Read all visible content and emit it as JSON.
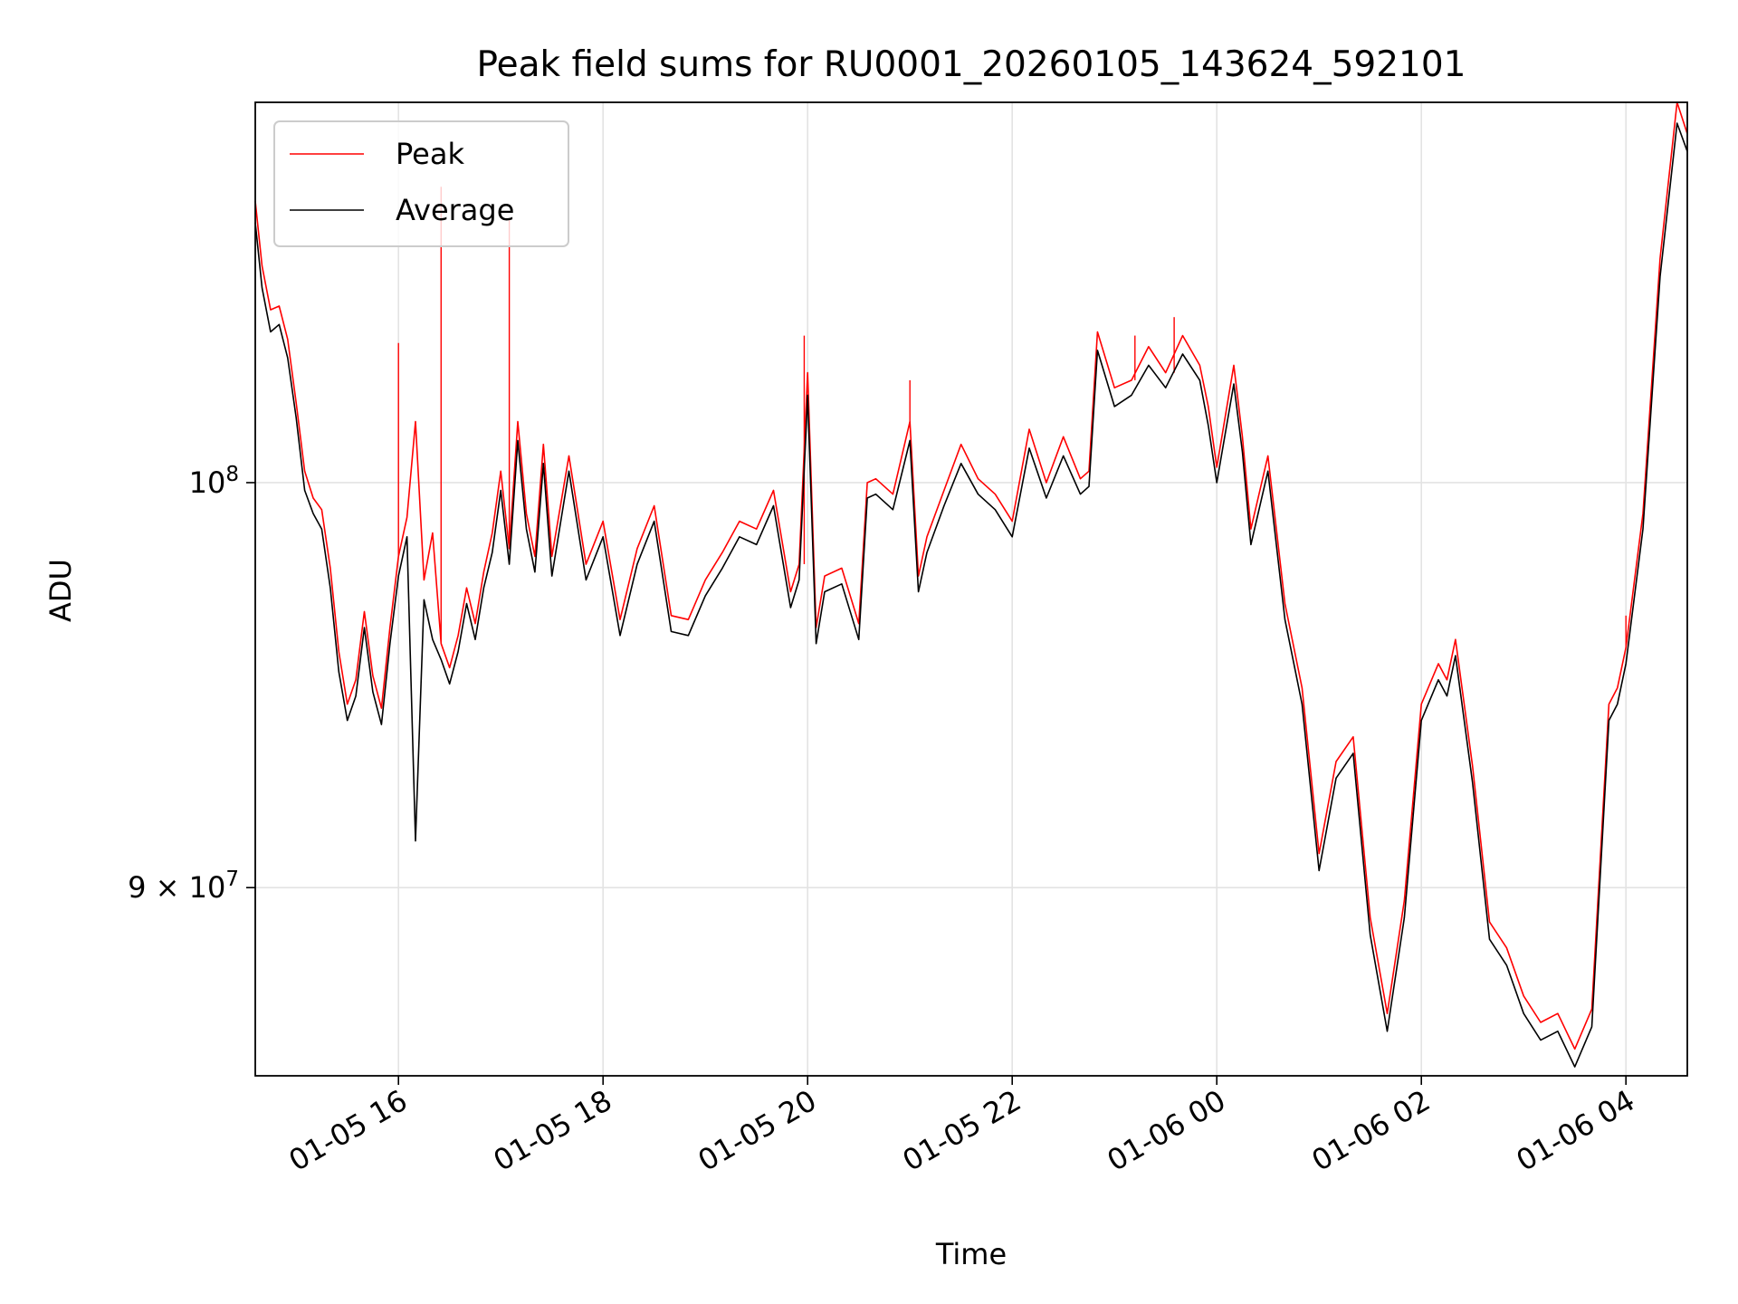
{
  "chart_data": {
    "type": "line",
    "title": "Peak field sums for RU0001_20260105_143624_592101",
    "xlabel": "Time",
    "ylabel": "ADU",
    "yscale": "log",
    "grid": true,
    "legend_position": "top-left",
    "xlim": [
      "2026-01-05 14:36",
      "2026-01-06 04:36"
    ],
    "ylim": [
      85700000,
      110400000
    ],
    "x_ticks": [
      {
        "value": "2026-01-05 16:00",
        "label": "01-05 16"
      },
      {
        "value": "2026-01-05 18:00",
        "label": "01-05 18"
      },
      {
        "value": "2026-01-05 20:00",
        "label": "01-05 20"
      },
      {
        "value": "2026-01-05 22:00",
        "label": "01-05 22"
      },
      {
        "value": "2026-01-06 00:00",
        "label": "01-06 00"
      },
      {
        "value": "2026-01-06 02:00",
        "label": "01-06 02"
      },
      {
        "value": "2026-01-06 04:00",
        "label": "01-06 04"
      }
    ],
    "y_ticks": [
      {
        "value": 90000000,
        "base": "9 × 10",
        "exp": "7"
      },
      {
        "value": 100000000,
        "base": "10",
        "exp": "8"
      }
    ],
    "series": [
      {
        "name": "Peak",
        "color": "#ff0000",
        "x": [
          "2026-01-05 14:36",
          "2026-01-05 14:40",
          "2026-01-05 14:45",
          "2026-01-05 14:50",
          "2026-01-05 14:55",
          "2026-01-05 15:00",
          "2026-01-05 15:05",
          "2026-01-05 15:10",
          "2026-01-05 15:15",
          "2026-01-05 15:20",
          "2026-01-05 15:25",
          "2026-01-05 15:30",
          "2026-01-05 15:35",
          "2026-01-05 15:40",
          "2026-01-05 15:45",
          "2026-01-05 15:50",
          "2026-01-05 15:55",
          "2026-01-05 16:00",
          "2026-01-05 16:05",
          "2026-01-05 16:10",
          "2026-01-05 16:15",
          "2026-01-05 16:20",
          "2026-01-05 16:25",
          "2026-01-05 16:30",
          "2026-01-05 16:35",
          "2026-01-05 16:40",
          "2026-01-05 16:45",
          "2026-01-05 16:50",
          "2026-01-05 16:55",
          "2026-01-05 17:00",
          "2026-01-05 17:05",
          "2026-01-05 17:10",
          "2026-01-05 17:15",
          "2026-01-05 17:20",
          "2026-01-05 17:25",
          "2026-01-05 17:30",
          "2026-01-05 17:40",
          "2026-01-05 17:50",
          "2026-01-05 18:00",
          "2026-01-05 18:10",
          "2026-01-05 18:20",
          "2026-01-05 18:30",
          "2026-01-05 18:40",
          "2026-01-05 18:50",
          "2026-01-05 19:00",
          "2026-01-05 19:10",
          "2026-01-05 19:20",
          "2026-01-05 19:30",
          "2026-01-05 19:40",
          "2026-01-05 19:50",
          "2026-01-05 19:55",
          "2026-01-05 20:00",
          "2026-01-05 20:05",
          "2026-01-05 20:10",
          "2026-01-05 20:20",
          "2026-01-05 20:30",
          "2026-01-05 20:35",
          "2026-01-05 20:40",
          "2026-01-05 20:50",
          "2026-01-05 21:00",
          "2026-01-05 21:05",
          "2026-01-05 21:10",
          "2026-01-05 21:20",
          "2026-01-05 21:30",
          "2026-01-05 21:40",
          "2026-01-05 21:50",
          "2026-01-05 22:00",
          "2026-01-05 22:10",
          "2026-01-05 22:20",
          "2026-01-05 22:30",
          "2026-01-05 22:40",
          "2026-01-05 22:45",
          "2026-01-05 22:50",
          "2026-01-05 23:00",
          "2026-01-05 23:10",
          "2026-01-05 23:20",
          "2026-01-05 23:30",
          "2026-01-05 23:40",
          "2026-01-05 23:50",
          "2026-01-05 23:55",
          "2026-01-06 00:00",
          "2026-01-06 00:10",
          "2026-01-06 00:15",
          "2026-01-06 00:20",
          "2026-01-06 00:30",
          "2026-01-06 00:40",
          "2026-01-06 00:50",
          "2026-01-06 01:00",
          "2026-01-06 01:10",
          "2026-01-06 01:20",
          "2026-01-06 01:30",
          "2026-01-06 01:40",
          "2026-01-06 01:50",
          "2026-01-06 02:00",
          "2026-01-06 02:10",
          "2026-01-06 02:15",
          "2026-01-06 02:20",
          "2026-01-06 02:30",
          "2026-01-06 02:40",
          "2026-01-06 02:50",
          "2026-01-06 03:00",
          "2026-01-06 03:10",
          "2026-01-06 03:20",
          "2026-01-06 03:30",
          "2026-01-06 03:40",
          "2026-01-06 03:50",
          "2026-01-06 03:55",
          "2026-01-06 04:00",
          "2026-01-06 04:10",
          "2026-01-06 04:20",
          "2026-01-06 04:30",
          "2026-01-06 04:36"
        ],
        "y": [
          107600000,
          105800000,
          104600000,
          104700000,
          103800000,
          102100000,
          100300000,
          99600000,
          99300000,
          97800000,
          95700000,
          94400000,
          95000000,
          96700000,
          95100000,
          94300000,
          96300000,
          98100000,
          99100000,
          101600000,
          97500000,
          98700000,
          95900000,
          95300000,
          96100000,
          97300000,
          96400000,
          97700000,
          98700000,
          100300000,
          98300000,
          101600000,
          99200000,
          98100000,
          101000000,
          98100000,
          100700000,
          97900000,
          99000000,
          96500000,
          98300000,
          99400000,
          96600000,
          96500000,
          97500000,
          98200000,
          99000000,
          98800000,
          99800000,
          97200000,
          97900000,
          102900000,
          96300000,
          97600000,
          97800000,
          96400000,
          100000000,
          100100000,
          99700000,
          101600000,
          97600000,
          98600000,
          99800000,
          101000000,
          100100000,
          99700000,
          99000000,
          101400000,
          100000000,
          101200000,
          100100000,
          100300000,
          104000000,
          102500000,
          102700000,
          103600000,
          102900000,
          103900000,
          103100000,
          102000000,
          100400000,
          103100000,
          101200000,
          98800000,
          100700000,
          96900000,
          94800000,
          90800000,
          93000000,
          93600000,
          89300000,
          87100000,
          89700000,
          94400000,
          95400000,
          95000000,
          96000000,
          92900000,
          89200000,
          88600000,
          87500000,
          86900000,
          87100000,
          86300000,
          87200000,
          94400000,
          94800000,
          95800000,
          99200000,
          106000000,
          110400000,
          109500000
        ],
        "spikes": [
          {
            "x": "2026-01-05 16:00",
            "y": 103700000
          },
          {
            "x": "2026-01-05 16:25",
            "y": 108000000
          },
          {
            "x": "2026-01-05 17:05",
            "y": 107100000
          },
          {
            "x": "2026-01-05 19:58",
            "y": 103900000
          },
          {
            "x": "2026-01-05 21:00",
            "y": 102700000
          },
          {
            "x": "2026-01-05 23:12",
            "y": 103900000
          },
          {
            "x": "2026-01-05 23:35",
            "y": 104400000
          },
          {
            "x": "2026-01-06 04:00",
            "y": 96600000
          }
        ]
      },
      {
        "name": "Average",
        "color": "#000000",
        "x": [
          "2026-01-05 14:36",
          "2026-01-05 14:40",
          "2026-01-05 14:45",
          "2026-01-05 14:50",
          "2026-01-05 14:55",
          "2026-01-05 15:00",
          "2026-01-05 15:05",
          "2026-01-05 15:10",
          "2026-01-05 15:15",
          "2026-01-05 15:20",
          "2026-01-05 15:25",
          "2026-01-05 15:30",
          "2026-01-05 15:35",
          "2026-01-05 15:40",
          "2026-01-05 15:45",
          "2026-01-05 15:50",
          "2026-01-05 15:55",
          "2026-01-05 16:00",
          "2026-01-05 16:05",
          "2026-01-05 16:10",
          "2026-01-05 16:15",
          "2026-01-05 16:20",
          "2026-01-05 16:25",
          "2026-01-05 16:30",
          "2026-01-05 16:35",
          "2026-01-05 16:40",
          "2026-01-05 16:45",
          "2026-01-05 16:50",
          "2026-01-05 16:55",
          "2026-01-05 17:00",
          "2026-01-05 17:05",
          "2026-01-05 17:10",
          "2026-01-05 17:15",
          "2026-01-05 17:20",
          "2026-01-05 17:25",
          "2026-01-05 17:30",
          "2026-01-05 17:40",
          "2026-01-05 17:50",
          "2026-01-05 18:00",
          "2026-01-05 18:10",
          "2026-01-05 18:20",
          "2026-01-05 18:30",
          "2026-01-05 18:40",
          "2026-01-05 18:50",
          "2026-01-05 19:00",
          "2026-01-05 19:10",
          "2026-01-05 19:20",
          "2026-01-05 19:30",
          "2026-01-05 19:40",
          "2026-01-05 19:50",
          "2026-01-05 19:55",
          "2026-01-05 20:00",
          "2026-01-05 20:05",
          "2026-01-05 20:10",
          "2026-01-05 20:20",
          "2026-01-05 20:30",
          "2026-01-05 20:35",
          "2026-01-05 20:40",
          "2026-01-05 20:50",
          "2026-01-05 21:00",
          "2026-01-05 21:05",
          "2026-01-05 21:10",
          "2026-01-05 21:20",
          "2026-01-05 21:30",
          "2026-01-05 21:40",
          "2026-01-05 21:50",
          "2026-01-05 22:00",
          "2026-01-05 22:10",
          "2026-01-05 22:20",
          "2026-01-05 22:30",
          "2026-01-05 22:40",
          "2026-01-05 22:45",
          "2026-01-05 22:50",
          "2026-01-05 23:00",
          "2026-01-05 23:10",
          "2026-01-05 23:20",
          "2026-01-05 23:30",
          "2026-01-05 23:40",
          "2026-01-05 23:50",
          "2026-01-05 23:55",
          "2026-01-06 00:00",
          "2026-01-06 00:10",
          "2026-01-06 00:15",
          "2026-01-06 00:20",
          "2026-01-06 00:30",
          "2026-01-06 00:40",
          "2026-01-06 00:50",
          "2026-01-06 01:00",
          "2026-01-06 01:10",
          "2026-01-06 01:20",
          "2026-01-06 01:30",
          "2026-01-06 01:40",
          "2026-01-06 01:50",
          "2026-01-06 02:00",
          "2026-01-06 02:10",
          "2026-01-06 02:15",
          "2026-01-06 02:20",
          "2026-01-06 02:30",
          "2026-01-06 02:40",
          "2026-01-06 02:50",
          "2026-01-06 03:00",
          "2026-01-06 03:10",
          "2026-01-06 03:20",
          "2026-01-06 03:30",
          "2026-01-06 03:40",
          "2026-01-06 03:50",
          "2026-01-06 03:55",
          "2026-01-06 04:00",
          "2026-01-06 04:10",
          "2026-01-06 04:20",
          "2026-01-06 04:30",
          "2026-01-06 04:36"
        ],
        "y": [
          107000000,
          105200000,
          104000000,
          104200000,
          103300000,
          101700000,
          99800000,
          99200000,
          98800000,
          97300000,
          95200000,
          94000000,
          94600000,
          96300000,
          94700000,
          93900000,
          95900000,
          97600000,
          98600000,
          91100000,
          97000000,
          96000000,
          95500000,
          94900000,
          95700000,
          96900000,
          96000000,
          97300000,
          98200000,
          99800000,
          97900000,
          101100000,
          98800000,
          97700000,
          100500000,
          97600000,
          100300000,
          97500000,
          98600000,
          96100000,
          97900000,
          99000000,
          96200000,
          96100000,
          97100000,
          97800000,
          98600000,
          98400000,
          99400000,
          96800000,
          97500000,
          102300000,
          95900000,
          97200000,
          97400000,
          96000000,
          99600000,
          99700000,
          99300000,
          101100000,
          97200000,
          98200000,
          99400000,
          100500000,
          99700000,
          99300000,
          98600000,
          100900000,
          99600000,
          100700000,
          99700000,
          99900000,
          103500000,
          102000000,
          102300000,
          103100000,
          102500000,
          103400000,
          102700000,
          101500000,
          100000000,
          102600000,
          100800000,
          98400000,
          100300000,
          96500000,
          94400000,
          90400000,
          92600000,
          93200000,
          88900000,
          86700000,
          89300000,
          94000000,
          95000000,
          94600000,
          95600000,
          92500000,
          88800000,
          88200000,
          87100000,
          86500000,
          86700000,
          85900000,
          86800000,
          94000000,
          94400000,
          95400000,
          98800000,
          105500000,
          109800000,
          109000000
        ]
      }
    ]
  }
}
